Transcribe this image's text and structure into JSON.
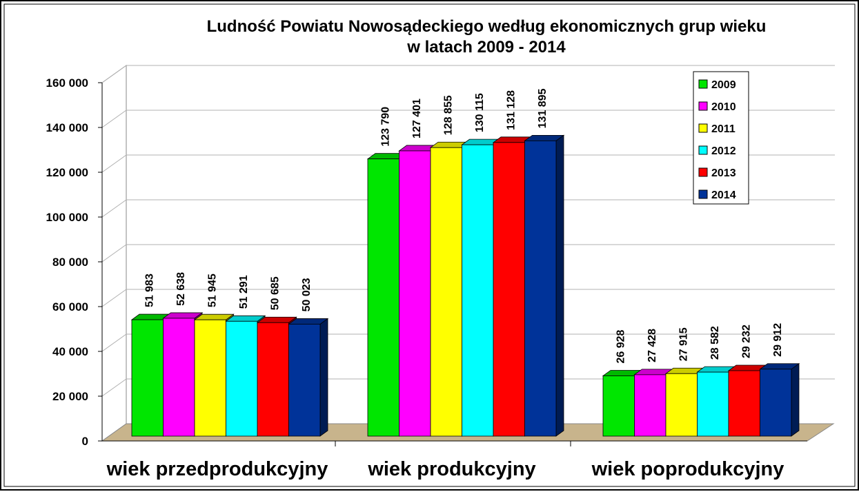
{
  "chart_data": {
    "type": "bar3d",
    "title": "Ludność Powiatu Nowosądeckiego według ekonomicznych grup wieku",
    "subtitle": "w latach 2009 - 2014",
    "categories": [
      "wiek przedprodukcyjny",
      "wiek produkcyjny",
      "wiek poprodukcyjny"
    ],
    "series": [
      {
        "name": "2009",
        "color": "#00e600",
        "values": [
          51983,
          123790,
          26928
        ],
        "value_labels": [
          "51 983",
          "123 790",
          "26 928"
        ]
      },
      {
        "name": "2010",
        "color": "#ff00ff",
        "values": [
          52638,
          127401,
          27428
        ],
        "value_labels": [
          "52 638",
          "127 401",
          "27 428"
        ]
      },
      {
        "name": "2011",
        "color": "#ffff00",
        "values": [
          51945,
          128855,
          27915
        ],
        "value_labels": [
          "51 945",
          "128 855",
          "27 915"
        ]
      },
      {
        "name": "2012",
        "color": "#00ffff",
        "values": [
          51291,
          130115,
          28582
        ],
        "value_labels": [
          "51 291",
          "130 115",
          "28 582"
        ]
      },
      {
        "name": "2013",
        "color": "#ff0000",
        "values": [
          50685,
          131128,
          29232
        ],
        "value_labels": [
          "50 685",
          "131 128",
          "29 232"
        ]
      },
      {
        "name": "2014",
        "color": "#003399",
        "values": [
          50023,
          131895,
          29912
        ],
        "value_labels": [
          "50 023",
          "131 895",
          "29 912"
        ]
      }
    ],
    "ylim": [
      0,
      160000
    ],
    "yticks": [
      0,
      {
        "value": 20000,
        "label": "20 000"
      },
      {
        "value": 40000,
        "label": "40 000"
      },
      {
        "value": 60000,
        "label": "60 000"
      },
      {
        "value": 80000,
        "label": "80 000"
      },
      {
        "value": 100000,
        "label": "100 000"
      },
      {
        "value": 120000,
        "label": "120 000"
      },
      {
        "value": 140000,
        "label": "140 000"
      },
      {
        "value": 160000,
        "label": "160 000"
      }
    ],
    "grid": true,
    "legend": "upper right"
  }
}
